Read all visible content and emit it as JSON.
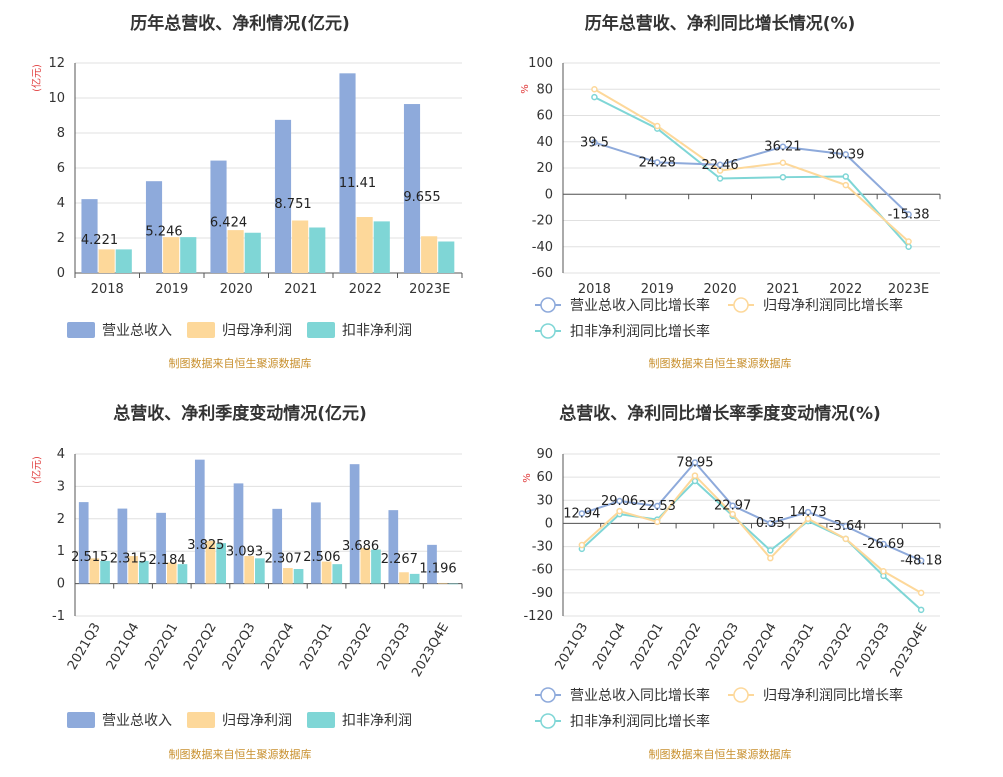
{
  "chart_data": [
    {
      "type": "bar",
      "title": "历年总营收、净利情况(亿元)",
      "unit_label": "(亿元)",
      "categories": [
        "2018",
        "2019",
        "2020",
        "2021",
        "2022",
        "2023E"
      ],
      "series": [
        {
          "name": "营业总收入",
          "color": "#8eaadb",
          "values": [
            4.221,
            5.246,
            6.424,
            8.751,
            11.41,
            9.655
          ]
        },
        {
          "name": "归母净利润",
          "color": "#fdd89a",
          "values": [
            1.35,
            2.05,
            2.45,
            3.0,
            3.2,
            2.1
          ]
        },
        {
          "name": "扣非净利润",
          "color": "#7fd6d6",
          "values": [
            1.35,
            2.05,
            2.3,
            2.6,
            2.95,
            1.8
          ]
        }
      ],
      "data_labels": [
        "4.221",
        "5.246",
        "6.424",
        "8.751",
        "11.41",
        "9.655"
      ],
      "ylim": [
        0,
        12
      ],
      "yticks": [
        "0",
        "2",
        "4",
        "6",
        "8",
        "10",
        "12"
      ],
      "legend_position": "bottom",
      "source": "制图数据来自恒生聚源数据库"
    },
    {
      "type": "line",
      "title": "历年总营收、净利同比增长情况(%)",
      "unit_label": "%",
      "categories": [
        "2018",
        "2019",
        "2020",
        "2021",
        "2022",
        "2023E"
      ],
      "series": [
        {
          "name": "营业总收入同比增长率",
          "color": "#8eaadb",
          "values": [
            39.5,
            24.28,
            22.46,
            36.21,
            30.39,
            -15.38
          ]
        },
        {
          "name": "归母净利润同比增长率",
          "color": "#fdd89a",
          "values": [
            80,
            52,
            18,
            24,
            7,
            -36
          ]
        },
        {
          "name": "扣非净利润同比增长率",
          "color": "#7fd6d6",
          "values": [
            74,
            50,
            12,
            13,
            13.5,
            -40
          ]
        }
      ],
      "data_labels": [
        "39.5",
        "24.28",
        "22.46",
        "36.21",
        "30.39",
        "-15.38"
      ],
      "ylim": [
        -60,
        100
      ],
      "yticks": [
        "-60",
        "-40",
        "-20",
        "0",
        "20",
        "40",
        "60",
        "80",
        "100"
      ],
      "legend_position": "bottom",
      "source": "制图数据来自恒生聚源数据库"
    },
    {
      "type": "bar",
      "title": "总营收、净利季度变动情况(亿元)",
      "unit_label": "(亿元)",
      "categories": [
        "2021Q3",
        "2021Q4",
        "2022Q1",
        "2022Q2",
        "2022Q3",
        "2022Q4",
        "2023Q1",
        "2023Q2",
        "2023Q3",
        "2023Q4E"
      ],
      "series": [
        {
          "name": "营业总收入",
          "color": "#8eaadb",
          "values": [
            2.515,
            2.315,
            2.184,
            3.825,
            3.093,
            2.307,
            2.506,
            3.686,
            2.267,
            1.196
          ]
        },
        {
          "name": "归母净利润",
          "color": "#fdd89a",
          "values": [
            0.78,
            0.85,
            0.65,
            1.32,
            0.85,
            0.48,
            0.68,
            1.1,
            0.35,
            0.02
          ]
        },
        {
          "name": "扣非净利润",
          "color": "#7fd6d6",
          "values": [
            0.7,
            0.7,
            0.6,
            1.25,
            0.78,
            0.45,
            0.6,
            1.05,
            0.3,
            -0.02
          ]
        }
      ],
      "data_labels": [
        "2.515",
        "2.315",
        "2.184",
        "3.825",
        "3.093",
        "2.307",
        "2.506",
        "3.686",
        "2.267",
        "1.196"
      ],
      "ylim": [
        -1,
        4
      ],
      "yticks": [
        "-1",
        "0",
        "1",
        "2",
        "3",
        "4"
      ],
      "legend_position": "bottom",
      "source": "制图数据来自恒生聚源数据库"
    },
    {
      "type": "line",
      "title": "总营收、净利同比增长率季度变动情况(%)",
      "unit_label": "%",
      "categories": [
        "2021Q3",
        "2021Q4",
        "2022Q1",
        "2022Q2",
        "2022Q3",
        "2022Q4",
        "2023Q1",
        "2023Q2",
        "2023Q3",
        "2023Q4E"
      ],
      "series": [
        {
          "name": "营业总收入同比增长率",
          "color": "#8eaadb",
          "values": [
            12.94,
            29.06,
            22.53,
            78.95,
            22.97,
            0.35,
            14.73,
            -3.64,
            -26.69,
            -48.18
          ]
        },
        {
          "name": "归母净利润同比增长率",
          "color": "#fdd89a",
          "values": [
            -28,
            16,
            2,
            62,
            12,
            -45,
            6,
            -20,
            -62,
            -90
          ]
        },
        {
          "name": "扣非净利润同比增长率",
          "color": "#7fd6d6",
          "values": [
            -33,
            12,
            5,
            55,
            10,
            -35,
            3,
            -20,
            -68,
            -112
          ]
        }
      ],
      "data_labels": [
        "12.94",
        "29.06",
        "22.53",
        "78.95",
        "22.97",
        "0.35",
        "14.73",
        "-3.64",
        "-26.69",
        "-48.18"
      ],
      "ylim": [
        -120,
        90
      ],
      "yticks": [
        "-120",
        "-90",
        "-60",
        "-30",
        "0",
        "30",
        "60",
        "90"
      ],
      "legend_position": "bottom",
      "source": "制图数据来自恒生聚源数据库"
    }
  ]
}
